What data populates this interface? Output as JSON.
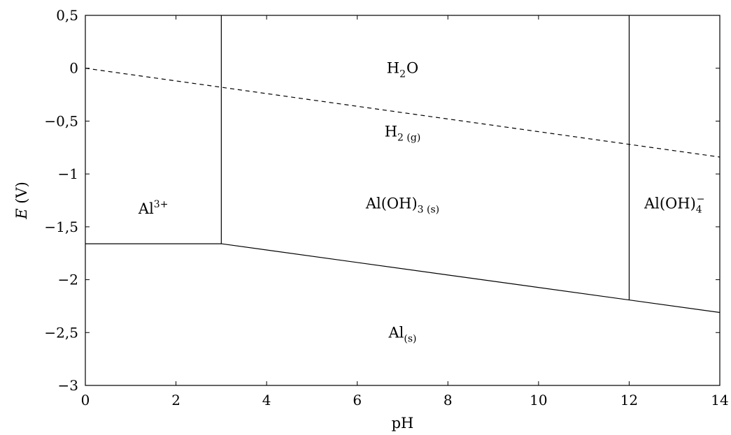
{
  "chart_data": {
    "type": "line",
    "title": "",
    "xlabel": "pH",
    "ylabel": {
      "var": "E",
      "unit": " (V)"
    },
    "xlim": [
      0,
      14
    ],
    "ylim": [
      -3,
      0.5
    ],
    "x_ticks": [
      {
        "v": 0,
        "label": "0"
      },
      {
        "v": 2,
        "label": "2"
      },
      {
        "v": 4,
        "label": "4"
      },
      {
        "v": 6,
        "label": "6"
      },
      {
        "v": 8,
        "label": "8"
      },
      {
        "v": 10,
        "label": "10"
      },
      {
        "v": 12,
        "label": "12"
      },
      {
        "v": 14,
        "label": "14"
      }
    ],
    "y_ticks": [
      {
        "v": 0.5,
        "label": "0,5"
      },
      {
        "v": 0,
        "label": "0"
      },
      {
        "v": -0.5,
        "label": "−0,5"
      },
      {
        "v": -1,
        "label": "−1"
      },
      {
        "v": -1.5,
        "label": "−1,5"
      },
      {
        "v": -2,
        "label": "−2"
      },
      {
        "v": -2.5,
        "label": "−2,5"
      },
      {
        "v": -3,
        "label": "−3"
      }
    ],
    "grid": false,
    "series": [
      {
        "style": "dashed",
        "points": [
          [
            0,
            0
          ],
          [
            14,
            -0.84
          ]
        ]
      },
      {
        "style": "solid",
        "points": [
          [
            0,
            -1.66
          ],
          [
            3,
            -1.66
          ],
          [
            14,
            -2.31
          ]
        ]
      },
      {
        "style": "solid",
        "points": [
          [
            3,
            0.5
          ],
          [
            3,
            -1.66
          ]
        ]
      },
      {
        "style": "solid",
        "points": [
          [
            12,
            0.5
          ],
          [
            12,
            -2.19
          ]
        ]
      }
    ],
    "annotations": [
      {
        "id": "al3",
        "x": 1.5,
        "y": -1.33,
        "base": "Al",
        "sup": "3+",
        "sub": ""
      },
      {
        "id": "h2o",
        "x": 7.0,
        "y": 0.0,
        "base": "H",
        "sub": "2",
        "rest": "O"
      },
      {
        "id": "h2g",
        "x": 7.0,
        "y": -0.6,
        "base": "H",
        "sub": "2 (g)"
      },
      {
        "id": "aloh3",
        "x": 7.0,
        "y": -1.28,
        "base": "Al(OH)",
        "sub": "3 (s)"
      },
      {
        "id": "aloh4",
        "x": 13.0,
        "y": -1.28,
        "base": "Al(OH)",
        "sub": "4",
        "sup": "−"
      },
      {
        "id": "als",
        "x": 7.0,
        "y": -2.5,
        "base": "Al",
        "sub": "(s)"
      }
    ]
  }
}
